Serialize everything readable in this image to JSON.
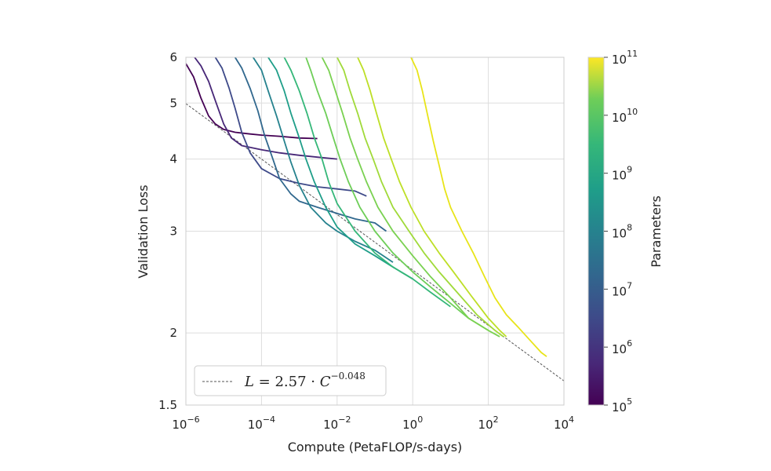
{
  "chart_data": {
    "type": "line",
    "xlabel": "Compute (PetaFLOP/s-days)",
    "ylabel": "Validation Loss",
    "x_scale": "log",
    "y_scale": "log",
    "xlim": [
      1e-06,
      10000
    ],
    "ylim": [
      1.5,
      6
    ],
    "x_ticks": [
      {
        "value": 1e-06,
        "base": "10",
        "exp": "−6"
      },
      {
        "value": 0.0001,
        "base": "10",
        "exp": "−4"
      },
      {
        "value": 0.01,
        "base": "10",
        "exp": "−2"
      },
      {
        "value": 1,
        "base": "10",
        "exp": "0"
      },
      {
        "value": 100,
        "base": "10",
        "exp": "2"
      },
      {
        "value": 10000,
        "base": "10",
        "exp": "4"
      }
    ],
    "y_ticks": [
      {
        "value": 1.5,
        "label": "1.5"
      },
      {
        "value": 2,
        "label": "2"
      },
      {
        "value": 3,
        "label": "3"
      },
      {
        "value": 4,
        "label": "4"
      },
      {
        "value": 5,
        "label": "5"
      },
      {
        "value": 6,
        "label": "6"
      }
    ],
    "grid": true,
    "legend": {
      "position": "lower-left",
      "label": "L = 2.57 · C^−0.048",
      "lhs": "L",
      "equals": " = 2.57 · ",
      "var": "C",
      "exponent": "−0.048"
    },
    "frontier": {
      "coefficient": 2.57,
      "exponent": -0.048,
      "style": "dashed",
      "color": "#555555"
    },
    "colorbar": {
      "label": "Parameters",
      "scale": "log",
      "range": [
        100000,
        100000000000
      ],
      "colormap": "viridis",
      "ticks": [
        {
          "value": 100000,
          "base": "10",
          "exp": "5"
        },
        {
          "value": 1000000,
          "base": "10",
          "exp": "6"
        },
        {
          "value": 10000000,
          "base": "10",
          "exp": "7"
        },
        {
          "value": 100000000,
          "base": "10",
          "exp": "8"
        },
        {
          "value": 1000000000,
          "base": "10",
          "exp": "9"
        },
        {
          "value": 10000000000,
          "base": "10",
          "exp": "10"
        },
        {
          "value": 100000000000,
          "base": "10",
          "exp": "11"
        }
      ]
    },
    "series": [
      {
        "params": 100000,
        "color": "#440154",
        "points": [
          [
            1e-06,
            5.85
          ],
          [
            1.6e-06,
            5.55
          ],
          [
            2.5e-06,
            5.1
          ],
          [
            4e-06,
            4.75
          ],
          [
            6e-06,
            4.6
          ],
          [
            1e-05,
            4.5
          ],
          [
            2e-05,
            4.45
          ],
          [
            5e-05,
            4.42
          ],
          [
            0.0001,
            4.4
          ],
          [
            0.0003,
            4.38
          ],
          [
            0.001,
            4.35
          ],
          [
            0.003,
            4.34
          ]
        ]
      },
      {
        "params": 300000,
        "color": "#482878",
        "points": [
          [
            1.7e-06,
            6
          ],
          [
            2.5e-06,
            5.8
          ],
          [
            4e-06,
            5.45
          ],
          [
            6e-06,
            5.05
          ],
          [
            1e-05,
            4.6
          ],
          [
            1.6e-05,
            4.35
          ],
          [
            3e-05,
            4.22
          ],
          [
            0.0001,
            4.15
          ],
          [
            0.0003,
            4.1
          ],
          [
            0.001,
            4.06
          ],
          [
            0.003,
            4.03
          ],
          [
            0.01,
            4.0
          ]
        ]
      },
      {
        "params": 700000,
        "color": "#3e4a89",
        "points": [
          [
            6e-06,
            6
          ],
          [
            9e-06,
            5.75
          ],
          [
            1.4e-05,
            5.3
          ],
          [
            2e-05,
            4.9
          ],
          [
            3e-05,
            4.45
          ],
          [
            5e-05,
            4.1
          ],
          [
            0.0001,
            3.85
          ],
          [
            0.0003,
            3.7
          ],
          [
            0.001,
            3.63
          ],
          [
            0.003,
            3.58
          ],
          [
            0.01,
            3.55
          ],
          [
            0.03,
            3.52
          ],
          [
            0.06,
            3.45
          ]
        ]
      },
      {
        "params": 2000000,
        "color": "#31688e",
        "points": [
          [
            2e-05,
            6
          ],
          [
            3e-05,
            5.75
          ],
          [
            5e-05,
            5.3
          ],
          [
            8e-05,
            4.85
          ],
          [
            0.00012,
            4.4
          ],
          [
            0.0002,
            4.0
          ],
          [
            0.0003,
            3.7
          ],
          [
            0.0006,
            3.48
          ],
          [
            0.001,
            3.38
          ],
          [
            0.003,
            3.3
          ],
          [
            0.01,
            3.22
          ],
          [
            0.03,
            3.15
          ],
          [
            0.1,
            3.1
          ],
          [
            0.2,
            3.0
          ]
        ]
      },
      {
        "params": 5000000,
        "color": "#26828e",
        "points": [
          [
            6e-05,
            6
          ],
          [
            0.0001,
            5.7
          ],
          [
            0.00015,
            5.25
          ],
          [
            0.00025,
            4.75
          ],
          [
            0.0004,
            4.3
          ],
          [
            0.0006,
            3.95
          ],
          [
            0.001,
            3.6
          ],
          [
            0.002,
            3.3
          ],
          [
            0.005,
            3.1
          ],
          [
            0.01,
            3.0
          ],
          [
            0.03,
            2.88
          ],
          [
            0.1,
            2.78
          ],
          [
            0.3,
            2.65
          ]
        ]
      },
      {
        "params": 10000000,
        "color": "#1f9e89",
        "points": [
          [
            0.00015,
            6
          ],
          [
            0.00025,
            5.7
          ],
          [
            0.0004,
            5.25
          ],
          [
            0.0006,
            4.8
          ],
          [
            0.001,
            4.35
          ],
          [
            0.0015,
            4.0
          ],
          [
            0.0025,
            3.65
          ],
          [
            0.005,
            3.3
          ],
          [
            0.01,
            3.05
          ],
          [
            0.03,
            2.85
          ],
          [
            0.1,
            2.72
          ],
          [
            0.3,
            2.6
          ],
          [
            1,
            2.48
          ]
        ]
      },
      {
        "params": 30000000,
        "color": "#35b779",
        "points": [
          [
            0.0004,
            6
          ],
          [
            0.0006,
            5.7
          ],
          [
            0.001,
            5.25
          ],
          [
            0.0016,
            4.8
          ],
          [
            0.0025,
            4.35
          ],
          [
            0.004,
            4.0
          ],
          [
            0.006,
            3.65
          ],
          [
            0.01,
            3.35
          ],
          [
            0.03,
            3.0
          ],
          [
            0.1,
            2.75
          ],
          [
            0.3,
            2.6
          ],
          [
            1,
            2.48
          ],
          [
            3,
            2.35
          ],
          [
            10,
            2.22
          ]
        ]
      },
      {
        "params": 100000000,
        "color": "#6ece58",
        "points": [
          [
            0.0015,
            6
          ],
          [
            0.002,
            5.7
          ],
          [
            0.003,
            5.25
          ],
          [
            0.005,
            4.8
          ],
          [
            0.008,
            4.35
          ],
          [
            0.012,
            4.0
          ],
          [
            0.02,
            3.65
          ],
          [
            0.04,
            3.3
          ],
          [
            0.1,
            3.0
          ],
          [
            0.3,
            2.75
          ],
          [
            1,
            2.55
          ],
          [
            3,
            2.4
          ],
          [
            10,
            2.25
          ],
          [
            30,
            2.12
          ],
          [
            100,
            2.02
          ]
        ]
      },
      {
        "params": 300000000,
        "color": "#7ad151",
        "points": [
          [
            0.004,
            6
          ],
          [
            0.006,
            5.7
          ],
          [
            0.009,
            5.25
          ],
          [
            0.014,
            4.8
          ],
          [
            0.022,
            4.35
          ],
          [
            0.035,
            4.0
          ],
          [
            0.06,
            3.65
          ],
          [
            0.12,
            3.3
          ],
          [
            0.3,
            3.0
          ],
          [
            1,
            2.72
          ],
          [
            3,
            2.5
          ],
          [
            10,
            2.3
          ],
          [
            30,
            2.12
          ],
          [
            100,
            2.02
          ],
          [
            200,
            1.97
          ]
        ]
      },
      {
        "params": 1000000000,
        "color": "#a0da39",
        "points": [
          [
            0.01,
            6
          ],
          [
            0.015,
            5.7
          ],
          [
            0.022,
            5.25
          ],
          [
            0.035,
            4.8
          ],
          [
            0.055,
            4.35
          ],
          [
            0.09,
            4.0
          ],
          [
            0.15,
            3.65
          ],
          [
            0.3,
            3.3
          ],
          [
            0.8,
            3.0
          ],
          [
            2,
            2.75
          ],
          [
            5,
            2.55
          ],
          [
            15,
            2.35
          ],
          [
            50,
            2.15
          ],
          [
            150,
            2.02
          ],
          [
            250,
            1.97
          ]
        ]
      },
      {
        "params": 3000000000,
        "color": "#bddf26",
        "points": [
          [
            0.035,
            6
          ],
          [
            0.05,
            5.7
          ],
          [
            0.075,
            5.25
          ],
          [
            0.11,
            4.8
          ],
          [
            0.17,
            4.35
          ],
          [
            0.27,
            4.0
          ],
          [
            0.45,
            3.65
          ],
          [
            0.9,
            3.3
          ],
          [
            2,
            3.0
          ],
          [
            5,
            2.75
          ],
          [
            12,
            2.55
          ],
          [
            35,
            2.32
          ],
          [
            100,
            2.12
          ],
          [
            200,
            2.02
          ],
          [
            300,
            1.97
          ]
        ]
      },
      {
        "params": 100000000000,
        "color": "#e8e419",
        "points": [
          [
            0.9,
            6
          ],
          [
            1.3,
            5.7
          ],
          [
            1.8,
            5.25
          ],
          [
            2.5,
            4.75
          ],
          [
            3.5,
            4.3
          ],
          [
            5,
            3.9
          ],
          [
            7,
            3.55
          ],
          [
            10,
            3.3
          ],
          [
            20,
            3.0
          ],
          [
            40,
            2.75
          ],
          [
            80,
            2.5
          ],
          [
            150,
            2.3
          ],
          [
            300,
            2.15
          ],
          [
            600,
            2.05
          ],
          [
            1200,
            1.95
          ],
          [
            2500,
            1.85
          ],
          [
            3500,
            1.82
          ]
        ]
      }
    ]
  }
}
